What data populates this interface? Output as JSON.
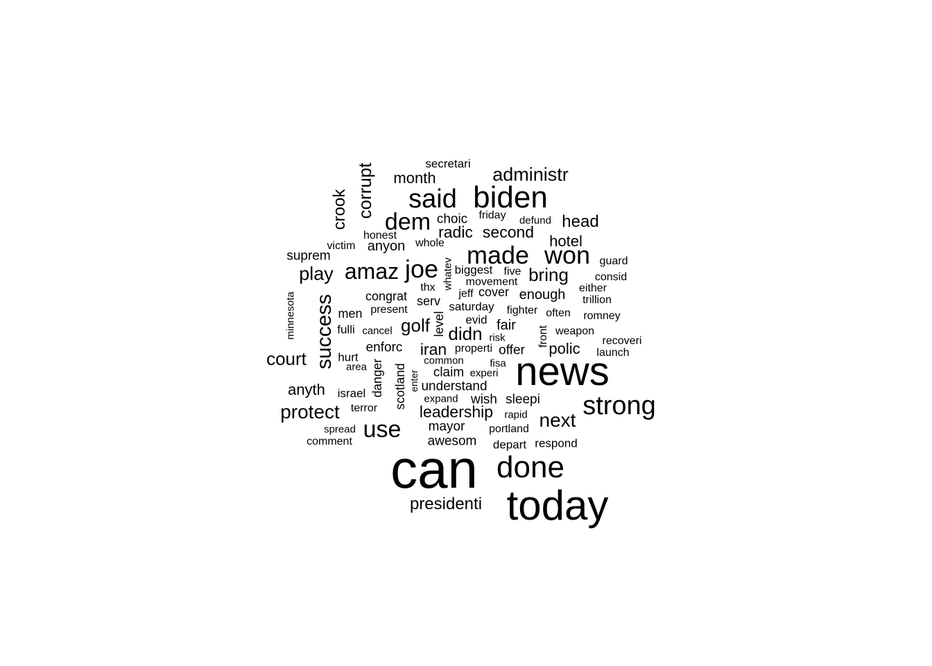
{
  "word_cloud": {
    "text_color": "#000000",
    "background": "#ffffff",
    "words": [
      {
        "text": "can",
        "weight": 100
      },
      {
        "text": "news",
        "weight": 72
      },
      {
        "text": "today",
        "weight": 70
      },
      {
        "text": "done",
        "weight": 52
      },
      {
        "text": "biden",
        "weight": 52
      },
      {
        "text": "strong",
        "weight": 46
      },
      {
        "text": "said",
        "weight": 46
      },
      {
        "text": "made",
        "weight": 42
      },
      {
        "text": "won",
        "weight": 42
      },
      {
        "text": "joe",
        "weight": 42
      },
      {
        "text": "dem",
        "weight": 38
      },
      {
        "text": "amaz",
        "weight": 36
      },
      {
        "text": "success",
        "weight": 34
      },
      {
        "text": "use",
        "weight": 34
      },
      {
        "text": "next",
        "weight": 32
      },
      {
        "text": "protect",
        "weight": 30
      },
      {
        "text": "court",
        "weight": 29
      },
      {
        "text": "play",
        "weight": 29
      },
      {
        "text": "corrupt",
        "weight": 29
      },
      {
        "text": "administr",
        "weight": 29
      },
      {
        "text": "golf",
        "weight": 28
      },
      {
        "text": "didn",
        "weight": 28
      },
      {
        "text": "bring",
        "weight": 28
      },
      {
        "text": "crook",
        "weight": 26
      },
      {
        "text": "head",
        "weight": 26
      },
      {
        "text": "presidenti",
        "weight": 26
      },
      {
        "text": "leadership",
        "weight": 25
      },
      {
        "text": "iran",
        "weight": 25
      },
      {
        "text": "second",
        "weight": 25
      },
      {
        "text": "radic",
        "weight": 25
      },
      {
        "text": "month",
        "weight": 24
      },
      {
        "text": "hotel",
        "weight": 24
      },
      {
        "text": "anyth",
        "weight": 24
      },
      {
        "text": "polic",
        "weight": 24
      },
      {
        "text": "enough",
        "weight": 22
      },
      {
        "text": "fair",
        "weight": 22
      },
      {
        "text": "anyon",
        "weight": 22
      },
      {
        "text": "enforc",
        "weight": 21
      },
      {
        "text": "mayor",
        "weight": 20
      },
      {
        "text": "awesom",
        "weight": 20
      },
      {
        "text": "understand",
        "weight": 20
      },
      {
        "text": "wish",
        "weight": 20
      },
      {
        "text": "sleepi",
        "weight": 20
      },
      {
        "text": "claim",
        "weight": 20
      },
      {
        "text": "offer",
        "weight": 20
      },
      {
        "text": "choic",
        "weight": 20
      },
      {
        "text": "suprem",
        "weight": 20
      },
      {
        "text": "congrat",
        "weight": 19
      },
      {
        "text": "men",
        "weight": 19
      },
      {
        "text": "cover",
        "weight": 19
      },
      {
        "text": "serv",
        "weight": 19
      },
      {
        "text": "level",
        "weight": 19
      },
      {
        "text": "danger",
        "weight": 19
      },
      {
        "text": "scotland",
        "weight": 19
      },
      {
        "text": "secretari",
        "weight": 18
      },
      {
        "text": "depart",
        "weight": 18
      },
      {
        "text": "respond",
        "weight": 18
      },
      {
        "text": "israel",
        "weight": 18
      },
      {
        "text": "fulli",
        "weight": 18
      },
      {
        "text": "hurt",
        "weight": 18
      },
      {
        "text": "evid",
        "weight": 18
      },
      {
        "text": "saturday",
        "weight": 18
      },
      {
        "text": "biggest",
        "weight": 18
      },
      {
        "text": "whole",
        "weight": 17
      },
      {
        "text": "honest",
        "weight": 17
      },
      {
        "text": "present",
        "weight": 17
      },
      {
        "text": "consid",
        "weight": 17
      },
      {
        "text": "movement",
        "weight": 17
      },
      {
        "text": "comment",
        "weight": 17
      },
      {
        "text": "terror",
        "weight": 17
      },
      {
        "text": "front",
        "weight": 17
      },
      {
        "text": "friday",
        "weight": 17
      },
      {
        "text": "thx",
        "weight": 17
      },
      {
        "text": "jeff",
        "weight": 17
      },
      {
        "text": "guard",
        "weight": 17
      },
      {
        "text": "either",
        "weight": 17
      },
      {
        "text": "romney",
        "weight": 17
      },
      {
        "text": "weapon",
        "weight": 17
      },
      {
        "text": "launch",
        "weight": 17
      },
      {
        "text": "recoveri",
        "weight": 17
      },
      {
        "text": "portland",
        "weight": 17
      },
      {
        "text": "properti",
        "weight": 17
      },
      {
        "text": "five",
        "weight": 17
      },
      {
        "text": "fighter",
        "weight": 17
      },
      {
        "text": "often",
        "weight": 17
      },
      {
        "text": "trillion",
        "weight": 17
      },
      {
        "text": "victim",
        "weight": 17
      },
      {
        "text": "minnesota",
        "weight": 16
      },
      {
        "text": "common",
        "weight": 16
      },
      {
        "text": "expand",
        "weight": 16
      },
      {
        "text": "risk",
        "weight": 16
      },
      {
        "text": "area",
        "weight": 16
      },
      {
        "text": "cancel",
        "weight": 16
      },
      {
        "text": "spread",
        "weight": 16
      },
      {
        "text": "rapid",
        "weight": 16
      },
      {
        "text": "whatev",
        "weight": 16
      },
      {
        "text": "fisa",
        "weight": 16
      },
      {
        "text": "experi",
        "weight": 16
      },
      {
        "text": "defund",
        "weight": 16
      },
      {
        "text": "enter",
        "weight": 15
      }
    ]
  }
}
